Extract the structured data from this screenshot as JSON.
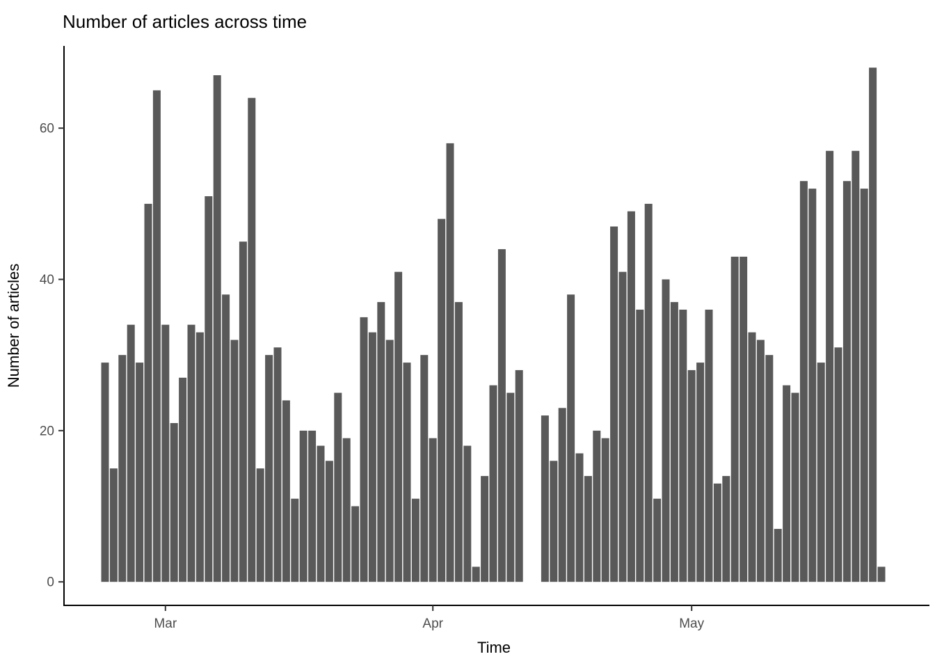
{
  "chart_data": {
    "type": "bar",
    "title": "Number of articles across time",
    "xlabel": "Time",
    "ylabel": "Number of articles",
    "ylim": [
      0,
      70
    ],
    "y_ticks": [
      0,
      20,
      40,
      60
    ],
    "x_ticks": [
      {
        "label": "Mar",
        "slot": 7
      },
      {
        "label": "Apr",
        "slot": 38
      },
      {
        "label": "May",
        "slot": 68
      }
    ],
    "bar_unit": "day",
    "gap_note": "two empty day-slots between slot 48 and slot 51",
    "values": [
      29,
      15,
      30,
      34,
      29,
      50,
      65,
      34,
      21,
      27,
      34,
      33,
      51,
      67,
      38,
      32,
      45,
      64,
      15,
      30,
      31,
      24,
      11,
      20,
      20,
      18,
      16,
      25,
      19,
      10,
      35,
      33,
      37,
      32,
      41,
      29,
      11,
      30,
      19,
      48,
      58,
      37,
      18,
      2,
      14,
      26,
      44,
      25,
      28,
      null,
      null,
      22,
      16,
      23,
      38,
      17,
      14,
      20,
      19,
      47,
      41,
      49,
      36,
      50,
      11,
      40,
      37,
      36,
      28,
      29,
      36,
      13,
      14,
      43,
      43,
      33,
      32,
      30,
      7,
      26,
      25,
      53,
      52,
      29,
      57,
      31,
      53,
      57,
      52,
      68,
      2
    ],
    "legend": null,
    "grid": false,
    "colors": {
      "bar": "#595959",
      "axis_line": "#000000",
      "tick_mark": "#333333",
      "tick_label": "#4d4d4d",
      "title": "#000000",
      "background": "#ffffff"
    }
  }
}
